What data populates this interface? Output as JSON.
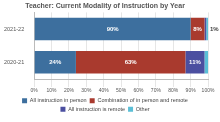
{
  "chart_data": {
    "type": "bar",
    "orientation": "horizontal",
    "stacked": true,
    "title": "Teacher: Current Modality of Instruction by Year",
    "categories": [
      "2021-22",
      "2020-21"
    ],
    "series": [
      {
        "name": "All instruction in person",
        "color": "#3d6f9e",
        "values": [
          90,
          24
        ],
        "value_labels": [
          "90%",
          "24%"
        ]
      },
      {
        "name": "Combination of in person and remote",
        "color": "#a93a2e",
        "values": [
          8,
          63
        ],
        "value_labels": [
          "8%",
          "63%"
        ]
      },
      {
        "name": "All instruction is remote",
        "color": "#4b4fa0",
        "values": [
          1,
          11
        ],
        "value_labels": [
          "1%",
          "11%"
        ]
      },
      {
        "name": "Other",
        "color": "#5bbfd6",
        "values": [
          1,
          2
        ],
        "value_labels": [
          null,
          null
        ]
      }
    ],
    "xlim": [
      0,
      100
    ],
    "xticks": [
      {
        "value": 0,
        "label": "0%"
      },
      {
        "value": 10,
        "label": "10%"
      },
      {
        "value": 20,
        "label": "20%"
      },
      {
        "value": 30,
        "label": "30%"
      },
      {
        "value": 40,
        "label": "40%"
      },
      {
        "value": 50,
        "label": "50%"
      },
      {
        "value": 60,
        "label": "60%"
      },
      {
        "value": 70,
        "label": "70%"
      },
      {
        "value": 80,
        "label": "80%"
      },
      {
        "value": 90,
        "label": "90%"
      },
      {
        "value": 100,
        "label": "100%"
      }
    ],
    "grid": true,
    "legend": "bottom",
    "data_labels": true
  }
}
